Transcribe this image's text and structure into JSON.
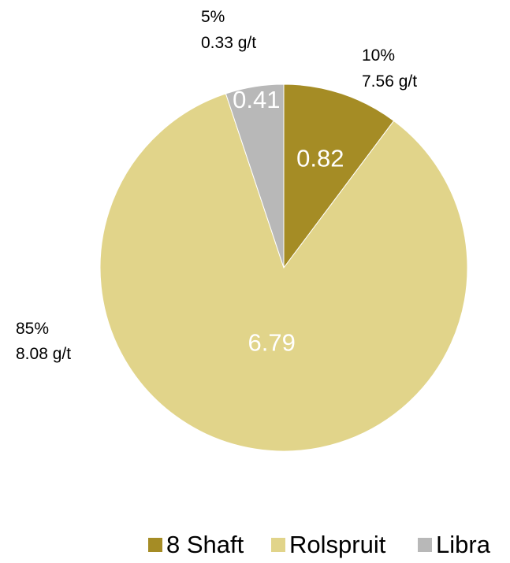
{
  "chart_data": {
    "type": "pie",
    "start_angle": "12 o'clock",
    "direction": "clockwise",
    "slices": [
      {
        "name": "8 Shaft",
        "value": 0.82,
        "value_label": "0.82",
        "annotation_percent": "10%",
        "annotation_grade": "7.56 g/t",
        "color": "#a58c25"
      },
      {
        "name": "Rolspruit",
        "value": 6.79,
        "value_label": "6.79",
        "annotation_percent": "85%",
        "annotation_grade": "8.08 g/t",
        "color": "#e1d48a"
      },
      {
        "name": "Libra",
        "value": 0.41,
        "value_label": "0.41",
        "annotation_percent": "5%",
        "annotation_grade": "0.33 g/t",
        "color": "#b8b8b8"
      }
    ],
    "legend": {
      "position": "bottom-right",
      "items": [
        "8 Shaft",
        "Rolspruit",
        "Libra"
      ]
    }
  }
}
